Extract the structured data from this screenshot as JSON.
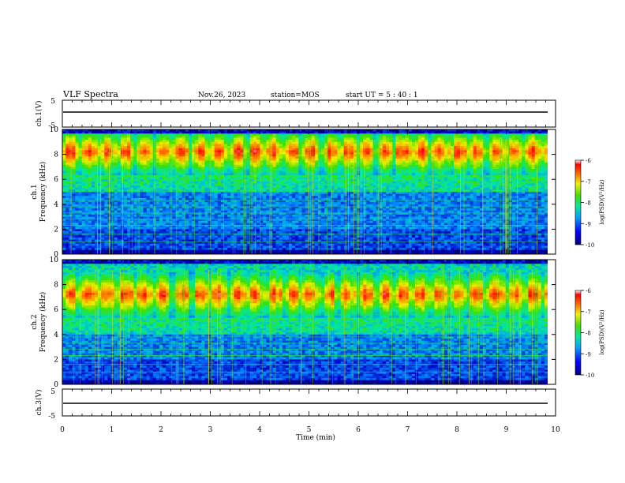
{
  "header": {
    "title": "VLF Spectra",
    "date": "Nov.26, 2023",
    "station": "station=MOS",
    "start_time": "start  UT =  5 : 40 : 1"
  },
  "chart_data": [
    {
      "type": "line",
      "name": "ch1-waveform",
      "ylabel": "ch.1(V)",
      "ylim": [
        -5,
        5
      ],
      "yticks": [
        "5",
        "-5"
      ],
      "xlim": [
        0,
        10
      ],
      "series": [
        {
          "x": [
            0,
            9.85
          ],
          "values": [
            0,
            0
          ]
        }
      ]
    },
    {
      "type": "heatmap",
      "name": "ch1-spectrogram",
      "ylabel": "Frequency (kHz)",
      "channel_label": "ch.1",
      "ylim": [
        0,
        10
      ],
      "yticks": [
        "0",
        "2",
        "4",
        "6",
        "8",
        "10"
      ],
      "xlim": [
        0,
        9.85
      ],
      "band_center_khz": 8.2,
      "colorbar": {
        "label": "log(PSD)(V²/Hz)",
        "range": [
          -10,
          -6
        ],
        "ticks": [
          "-6",
          "-7",
          "-8",
          "-9",
          "-10"
        ]
      }
    },
    {
      "type": "heatmap",
      "name": "ch2-spectrogram",
      "ylabel": "Frequency (kHz)",
      "channel_label": "ch.2",
      "ylim": [
        0,
        10
      ],
      "yticks": [
        "0",
        "2",
        "4",
        "6",
        "8",
        "10"
      ],
      "xlim": [
        0,
        9.85
      ],
      "band_center_khz": 7.2,
      "colorbar": {
        "label": "log(PSD)(V²/Hz)",
        "range": [
          -10,
          -6
        ],
        "ticks": [
          "-6",
          "-7",
          "-8",
          "-9",
          "-10"
        ]
      }
    },
    {
      "type": "line",
      "name": "ch3-waveform",
      "ylabel": "ch.3(V)",
      "ylim": [
        -5,
        5
      ],
      "yticks": [
        "5",
        "-5"
      ],
      "xlim": [
        0,
        10
      ],
      "series": [
        {
          "x": [
            0,
            9.85
          ],
          "values": [
            -1,
            -1
          ]
        }
      ]
    }
  ],
  "xaxis": {
    "label": "Time  (min)",
    "ticks": [
      "0",
      "1",
      "2",
      "3",
      "4",
      "5",
      "6",
      "7",
      "8",
      "9",
      "10"
    ]
  }
}
